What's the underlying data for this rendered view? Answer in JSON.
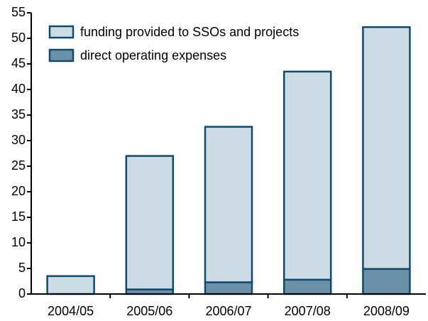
{
  "chart_data": {
    "type": "stacked_bar",
    "categories": [
      "2004/05",
      "2005/06",
      "2006/07",
      "2007/08",
      "2008/09"
    ],
    "series": [
      {
        "name": "direct operating expenses",
        "color": "#6b91a8",
        "values": [
          0,
          0.9,
          2.3,
          2.8,
          4.9
        ]
      },
      {
        "name": "funding provided to SSOs and projects",
        "color": "#cddce4",
        "values": [
          3.5,
          26.1,
          30.4,
          40.7,
          47.3
        ]
      }
    ],
    "ylim": [
      0,
      55
    ],
    "yticks": [
      0,
      5,
      10,
      15,
      20,
      25,
      30,
      35,
      40,
      45,
      50,
      55
    ]
  }
}
